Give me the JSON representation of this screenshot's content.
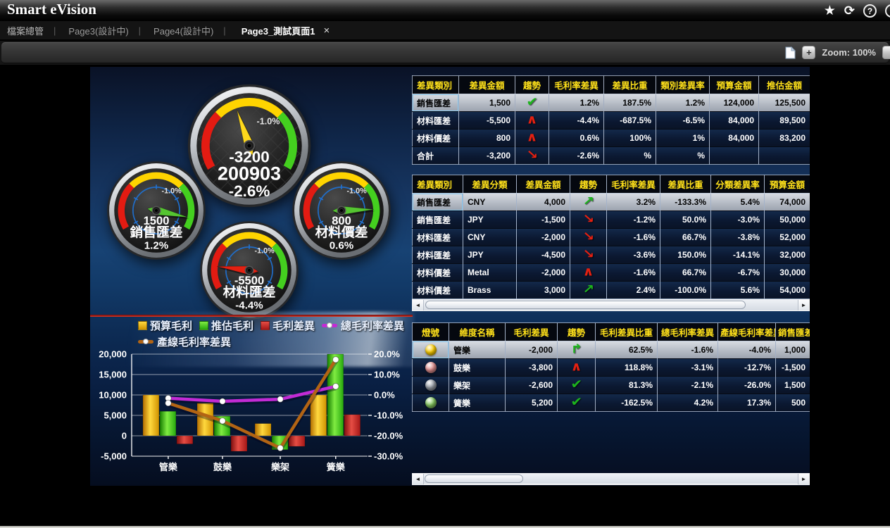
{
  "app": {
    "title": "Smart eVision"
  },
  "header_icons": [
    {
      "name": "favorite-star-icon",
      "glyph": "★"
    },
    {
      "name": "refresh-icon",
      "glyph": "⟳"
    },
    {
      "name": "help-icon",
      "glyph": "?"
    },
    {
      "name": "power-icon",
      "glyph": ""
    }
  ],
  "tabs": {
    "separator": "|",
    "items": [
      {
        "label": "檔案總管",
        "active": false
      },
      {
        "label": "Page3(設計中)",
        "active": false
      },
      {
        "label": "Page4(設計中)",
        "active": false
      },
      {
        "label": "Page3_測試頁面1",
        "active": true,
        "close_glyph": "×"
      }
    ]
  },
  "toolbar": {
    "zoom_label": "Zoom: 100%",
    "zoom_in_label": "+",
    "zoom_out_label": ""
  },
  "scrollbar": {
    "left_arrow": "◄",
    "right_arrow": "►"
  },
  "trend_icons": {
    "green-check": {
      "glyph": "✔",
      "color": "#1db41d"
    },
    "green-up": {
      "glyph": "↗",
      "color": "#1db41d"
    },
    "green-turn-up": {
      "glyph": "↱",
      "color": "#1db41d"
    },
    "red-up": {
      "glyph": "∧",
      "color": "#e42011"
    },
    "red-down": {
      "glyph": "↘",
      "color": "#e42011"
    }
  },
  "ball_colors": {
    "yellow": "#ffcf00",
    "red": "#e49292",
    "gray": "#9aa0a8",
    "green": "#86c960"
  },
  "gauges": [
    {
      "size": "large",
      "value": "-3200",
      "period": "200903",
      "pct": "-2.6%",
      "scale_label": "-1.0%",
      "needle_deg": 109,
      "needle_color": "#ffd91c"
    },
    {
      "size": "small",
      "value": "1500",
      "name": "銷售匯差",
      "pct": "1.2%",
      "scale_label": "-1.0%",
      "needle_deg": -12,
      "needle_color": "#55c531"
    },
    {
      "size": "small",
      "value": "800",
      "name": "材料價差",
      "pct": "0.6%",
      "scale_label": "-1.0%",
      "needle_deg": 2,
      "needle_color": "#55c531"
    },
    {
      "size": "small",
      "value": "-5500",
      "name": "材料匯差",
      "pct": "-4.4%",
      "scale_label": "-1.0%",
      "needle_deg": 173,
      "needle_color": "#e42011"
    }
  ],
  "tables": [
    {
      "name": "variance-by-category-table",
      "headers": [
        "差異類別",
        "差異金額",
        "趨勢",
        "毛利率差異",
        "差異比重",
        "類別差異率",
        "預算金額",
        "推估金額"
      ],
      "rows": [
        [
          "銷售匯差",
          "1,500",
          "green-check",
          "1.2%",
          "187.5%",
          "1.2%",
          "124,000",
          "125,500"
        ],
        [
          "材料匯差",
          "-5,500",
          "red-up",
          "-4.4%",
          "-687.5%",
          "-6.5%",
          "84,000",
          "89,500"
        ],
        [
          "材料價差",
          "800",
          "red-up",
          "0.6%",
          "100%",
          "1%",
          "84,000",
          "83,200"
        ],
        [
          "合計",
          "-3,200",
          "red-down",
          "-2.6%",
          "%",
          "%",
          "",
          ""
        ]
      ]
    },
    {
      "name": "variance-by-class-table",
      "headers": [
        "差異類別",
        "差異分類",
        "差異金額",
        "趨勢",
        "毛利率差異",
        "差異比重",
        "分類差異率",
        "預算金額"
      ],
      "rows": [
        [
          "銷售匯差",
          "CNY",
          "4,000",
          "green-up",
          "3.2%",
          "-133.3%",
          "5.4%",
          "74,000"
        ],
        [
          "銷售匯差",
          "JPY",
          "-1,500",
          "red-down",
          "-1.2%",
          "50.0%",
          "-3.0%",
          "50,000"
        ],
        [
          "材料匯差",
          "CNY",
          "-2,000",
          "red-down",
          "-1.6%",
          "66.7%",
          "-3.8%",
          "52,000"
        ],
        [
          "材料匯差",
          "JPY",
          "-4,500",
          "red-down",
          "-3.6%",
          "150.0%",
          "-14.1%",
          "32,000"
        ],
        [
          "材料價差",
          "Metal",
          "-2,000",
          "red-up",
          "-1.6%",
          "66.7%",
          "-6.7%",
          "30,000"
        ],
        [
          "材料價差",
          "Brass",
          "3,000",
          "green-up",
          "2.4%",
          "-100.0%",
          "5.6%",
          "54,000"
        ]
      ]
    },
    {
      "name": "profit-by-line-table",
      "headers": [
        "燈號",
        "維度名稱",
        "毛利差異",
        "趨勢",
        "毛利差異比重",
        "總毛利率差異",
        "產線毛利率差異",
        "銷售匯差"
      ],
      "rows": [
        [
          "yellow",
          "管樂",
          "-2,000",
          "green-turn-up",
          "62.5%",
          "-1.6%",
          "-4.0%",
          "1,000"
        ],
        [
          "red",
          "鼓樂",
          "-3,800",
          "red-up",
          "118.8%",
          "-3.1%",
          "-12.7%",
          "-1,500"
        ],
        [
          "gray",
          "樂架",
          "-2,600",
          "green-check",
          "81.3%",
          "-2.1%",
          "-26.0%",
          "1,500"
        ],
        [
          "green",
          "簧樂",
          "5,200",
          "green-check",
          "-162.5%",
          "4.2%",
          "17.3%",
          "500"
        ]
      ]
    }
  ],
  "chart_data": {
    "type": "combo",
    "categories": [
      "管樂",
      "鼓樂",
      "樂架",
      "簧樂"
    ],
    "series": [
      {
        "name": "預算毛利",
        "type": "bar",
        "axis": "left",
        "color": "#f5b800",
        "gradient": [
          "#b36d00",
          "#ffd83e",
          "#cf9200"
        ],
        "values": [
          10000,
          8000,
          3000,
          10000
        ]
      },
      {
        "name": "推估毛利",
        "type": "bar",
        "axis": "left",
        "color": "#35c40a",
        "gradient": [
          "#157c00",
          "#80ec42",
          "#26a80d"
        ],
        "values": [
          6000,
          4800,
          -3400,
          20000
        ]
      },
      {
        "name": "毛利差異",
        "type": "bar",
        "axis": "left",
        "color": "#cf2020",
        "gradient": [
          "#7e0f0f",
          "#e64d44",
          "#a51717"
        ],
        "values": [
          -2000,
          -3800,
          -2600,
          5200
        ]
      },
      {
        "name": "總毛利率差異",
        "type": "line",
        "axis": "right",
        "color": "#c32bd5",
        "values": [
          -1.6,
          -3.1,
          -2.1,
          4.2
        ]
      },
      {
        "name": "產線毛利率差異",
        "type": "line",
        "axis": "right",
        "color": "#b26414",
        "values": [
          -4.0,
          -12.7,
          -26.0,
          17.3
        ]
      }
    ],
    "left_axis": {
      "min": -5000,
      "max": 20000,
      "step": 5000,
      "labels": [
        "20,000",
        "15,000",
        "10,000",
        "5,000",
        "0",
        "-5,000"
      ]
    },
    "right_axis": {
      "min": -30,
      "max": 20,
      "step": 10,
      "labels": [
        "20.0%",
        "10.0%",
        "0.0%",
        "-10.0%",
        "-20.0%",
        "-30.0%"
      ]
    },
    "grid": true,
    "legend_position": "top"
  }
}
